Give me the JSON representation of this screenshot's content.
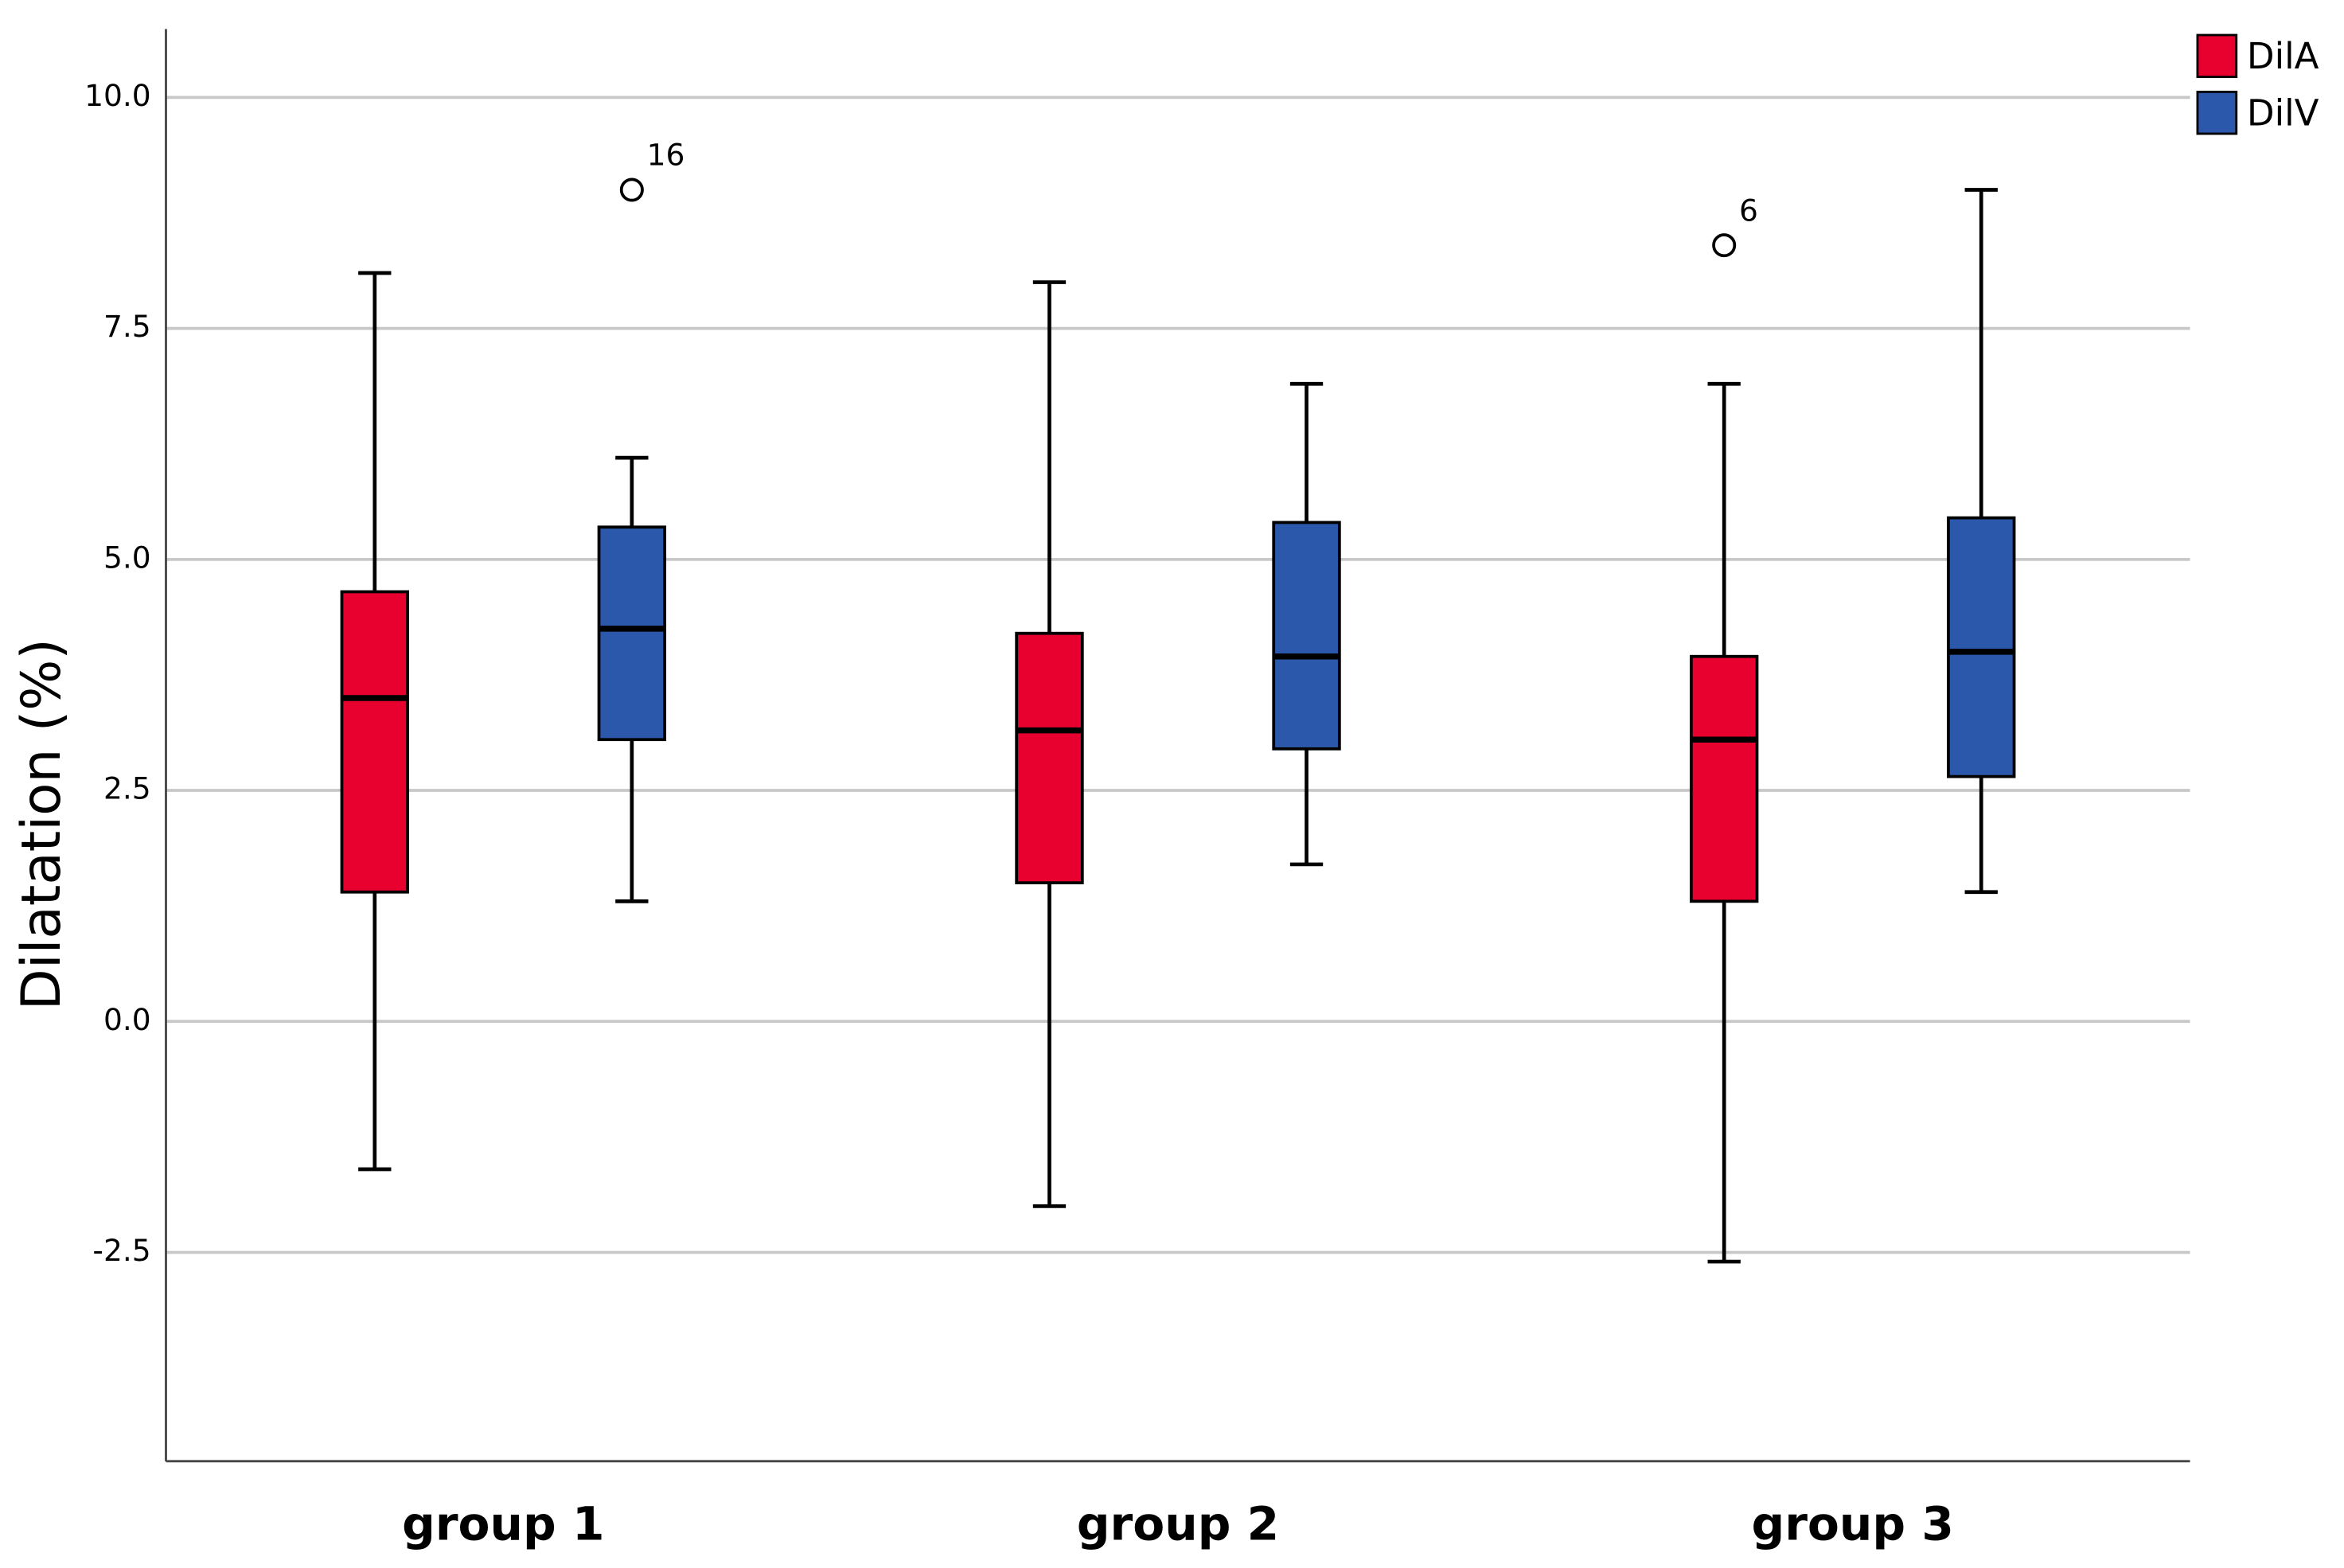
{
  "chart_data": {
    "type": "boxplot",
    "y_label": "Dilatation (%)",
    "categories": [
      "group 1",
      "group 2",
      "group 3"
    ],
    "ylim": [
      -4.76,
      10.74
    ],
    "yticks": [
      {
        "value": -2.5,
        "label": "-2.5"
      },
      {
        "value": 0,
        "label": "0.0"
      },
      {
        "value": 2.5,
        "label": "2.5"
      },
      {
        "value": 5,
        "label": "5.0"
      },
      {
        "value": 7.5,
        "label": "7.5"
      },
      {
        "value": 10,
        "label": "10.0"
      }
    ],
    "grid": true,
    "legend": "top-right",
    "series": [
      {
        "name": "DilA",
        "color": "#e8002f",
        "min": [
          -1.6,
          -2.0,
          -2.6
        ],
        "q1": [
          1.4,
          1.5,
          1.3
        ],
        "median": [
          3.5,
          3.15,
          3.05
        ],
        "q3": [
          4.65,
          4.2,
          3.95
        ],
        "max": [
          8.1,
          8.0,
          6.9
        ],
        "outliers": [
          {
            "category": 2,
            "value": 8.4,
            "label": "6"
          }
        ]
      },
      {
        "name": "DilV",
        "color": "#2b58aa",
        "min": [
          1.3,
          1.7,
          1.4
        ],
        "q1": [
          3.05,
          2.95,
          2.65
        ],
        "median": [
          4.25,
          3.95,
          4.0
        ],
        "q3": [
          5.35,
          5.4,
          5.45
        ],
        "max": [
          6.1,
          6.9,
          9.0
        ],
        "outliers": [
          {
            "category": 0,
            "value": 9.0,
            "label": "16"
          }
        ]
      }
    ]
  }
}
